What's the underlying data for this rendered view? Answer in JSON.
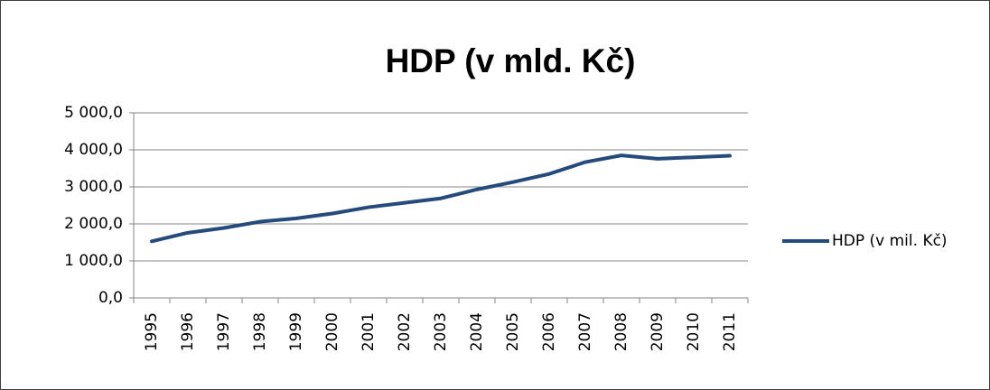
{
  "chart_data": {
    "type": "line",
    "title": "HDP (v mld. Kč)",
    "categories": [
      "1995",
      "1996",
      "1997",
      "1998",
      "1999",
      "2000",
      "2001",
      "2002",
      "2003",
      "2004",
      "2005",
      "2006",
      "2007",
      "2008",
      "2009",
      "2010",
      "2011"
    ],
    "series": [
      {
        "name": "HDP (v mil. Kč)",
        "color": "#254a7c",
        "values": [
          1530,
          1760,
          1890,
          2060,
          2150,
          2280,
          2450,
          2570,
          2690,
          2930,
          3130,
          3350,
          3670,
          3850,
          3760,
          3800,
          3840
        ]
      }
    ],
    "ylim": [
      0,
      5000
    ],
    "yticks": [
      {
        "value": 0,
        "label": "0,0"
      },
      {
        "value": 1000,
        "label": "1 000,0"
      },
      {
        "value": 2000,
        "label": "2 000,0"
      },
      {
        "value": 3000,
        "label": "3 000,0"
      },
      {
        "value": 4000,
        "label": "4 000,0"
      },
      {
        "value": 5000,
        "label": "5 000,0"
      }
    ],
    "grid": true,
    "legend": "right"
  }
}
